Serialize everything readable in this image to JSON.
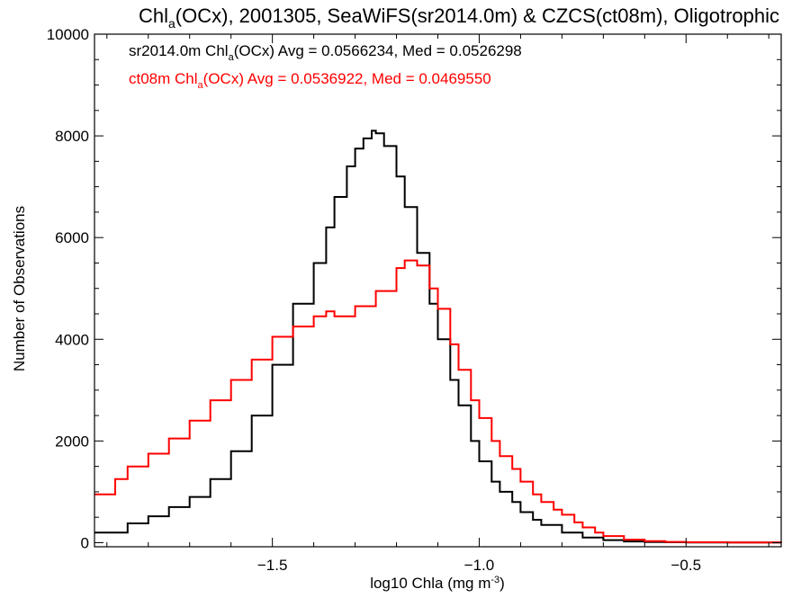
{
  "chart_data": {
    "type": "line",
    "title_parts": {
      "pre": "Chl",
      "sub": "a",
      "post": "(OCx), 2001305, SeaWiFS(sr2014.0m) & CZCS(ct08m), Oligotrophic"
    },
    "xlabel_parts": {
      "pre": "log10 Chla (mg m",
      "sup": "-3",
      "post": ")"
    },
    "ylabel": "Number of Observations",
    "xlim": [
      -1.93,
      -0.27
    ],
    "ylim": [
      -80,
      10000
    ],
    "xticks": [
      -1.5,
      -1.0,
      -0.5
    ],
    "xtick_labels": [
      "−1.5",
      "−1.0",
      "−0.5"
    ],
    "yticks": [
      0,
      2000,
      4000,
      6000,
      8000,
      10000
    ],
    "ytick_labels": [
      "0",
      "2000",
      "4000",
      "6000",
      "8000",
      "10000"
    ],
    "grid": false,
    "series": [
      {
        "legend_parts": {
          "pre": "sr2014.0m Chl",
          "sub": "a",
          "post": "(OCx) Avg = 0.0566234, Med = 0.0526298"
        },
        "color": "#000000",
        "x": [
          -1.93,
          -1.85,
          -1.8,
          -1.75,
          -1.7,
          -1.65,
          -1.6,
          -1.55,
          -1.5,
          -1.45,
          -1.4,
          -1.37,
          -1.35,
          -1.32,
          -1.3,
          -1.28,
          -1.26,
          -1.25,
          -1.23,
          -1.2,
          -1.18,
          -1.15,
          -1.12,
          -1.1,
          -1.07,
          -1.05,
          -1.02,
          -1.0,
          -0.97,
          -0.95,
          -0.92,
          -0.9,
          -0.87,
          -0.85,
          -0.8,
          -0.75,
          -0.7,
          -0.65,
          -0.6,
          -0.55,
          -0.5,
          -0.4,
          -0.27
        ],
        "y": [
          200,
          380,
          520,
          700,
          900,
          1250,
          1800,
          2500,
          3500,
          4700,
          5500,
          6200,
          6800,
          7400,
          7750,
          7950,
          8100,
          8050,
          7800,
          7200,
          6600,
          5700,
          4700,
          4000,
          3200,
          2700,
          2000,
          1600,
          1200,
          1000,
          800,
          600,
          450,
          350,
          200,
          100,
          50,
          25,
          12,
          8,
          5,
          3,
          2
        ]
      },
      {
        "legend_parts": {
          "pre": "ct08m Chl",
          "sub": "a",
          "post": "(OCx) Avg = 0.0536922, Med = 0.0469550"
        },
        "color": "#ff0000",
        "x": [
          -1.93,
          -1.88,
          -1.85,
          -1.8,
          -1.75,
          -1.7,
          -1.65,
          -1.6,
          -1.55,
          -1.5,
          -1.45,
          -1.4,
          -1.37,
          -1.35,
          -1.3,
          -1.25,
          -1.2,
          -1.18,
          -1.15,
          -1.12,
          -1.1,
          -1.07,
          -1.05,
          -1.02,
          -1.0,
          -0.97,
          -0.95,
          -0.92,
          -0.9,
          -0.87,
          -0.85,
          -0.82,
          -0.8,
          -0.77,
          -0.75,
          -0.72,
          -0.7,
          -0.65,
          -0.6,
          -0.55,
          -0.5,
          -0.4,
          -0.27
        ],
        "y": [
          950,
          1250,
          1500,
          1750,
          2050,
          2400,
          2800,
          3200,
          3600,
          4050,
          4250,
          4450,
          4550,
          4450,
          4650,
          4950,
          5400,
          5550,
          5450,
          5000,
          4600,
          3900,
          3400,
          2800,
          2450,
          2000,
          1700,
          1450,
          1200,
          950,
          800,
          650,
          550,
          400,
          300,
          200,
          130,
          60,
          30,
          15,
          8,
          4,
          2
        ]
      }
    ]
  }
}
